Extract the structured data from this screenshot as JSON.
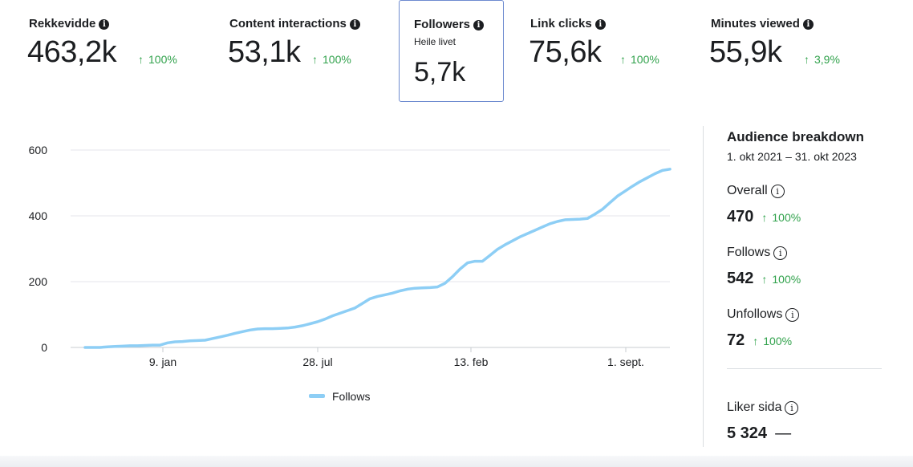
{
  "metrics": [
    {
      "label": "Rekkevidde",
      "value": "463,2k",
      "change": "100%"
    },
    {
      "label": "Content interactions",
      "value": "53,1k",
      "change": "100%"
    },
    {
      "label": "Followers",
      "sub": "Heile livet",
      "value": "5,7k"
    },
    {
      "label": "Link clicks",
      "value": "75,6k",
      "change": "100%"
    },
    {
      "label": "Minutes viewed",
      "value": "55,9k",
      "change": "3,9%"
    }
  ],
  "chart_data": {
    "type": "line",
    "x_ticks": [
      "9. jan",
      "28. jul",
      "13. feb",
      "1. sept."
    ],
    "y_ticks": [
      0,
      200,
      400,
      600
    ],
    "ylim": [
      0,
      600
    ],
    "series": [
      {
        "name": "Follows",
        "color": "#8dcef5",
        "values": [
          0,
          0,
          0,
          2,
          3,
          4,
          5,
          5,
          6,
          7,
          7,
          14,
          17,
          18,
          20,
          21,
          22,
          27,
          32,
          37,
          43,
          48,
          53,
          56,
          57,
          57,
          58,
          59,
          62,
          66,
          72,
          78,
          86,
          96,
          104,
          112,
          120,
          134,
          148,
          155,
          160,
          165,
          172,
          177,
          180,
          181,
          182,
          184,
          195,
          215,
          238,
          257,
          262,
          262,
          280,
          298,
          312,
          324,
          336,
          346,
          356,
          366,
          376,
          383,
          388,
          389,
          390,
          392,
          405,
          420,
          440,
          460,
          475,
          490,
          504,
          516,
          528,
          538,
          542
        ]
      }
    ],
    "legend": [
      "Follows"
    ],
    "grid": true
  },
  "audience": {
    "title": "Audience breakdown",
    "range": "1. okt 2021 – 31. okt 2023",
    "items": [
      {
        "label": "Overall",
        "value": "470",
        "change": "100%"
      },
      {
        "label": "Follows",
        "value": "542",
        "change": "100%"
      },
      {
        "label": "Unfollows",
        "value": "72",
        "change": "100%"
      }
    ],
    "page_likes": {
      "label": "Liker sida",
      "value": "5 324",
      "change": "—"
    }
  },
  "icons": {
    "info": "i",
    "arrow": "↑"
  }
}
